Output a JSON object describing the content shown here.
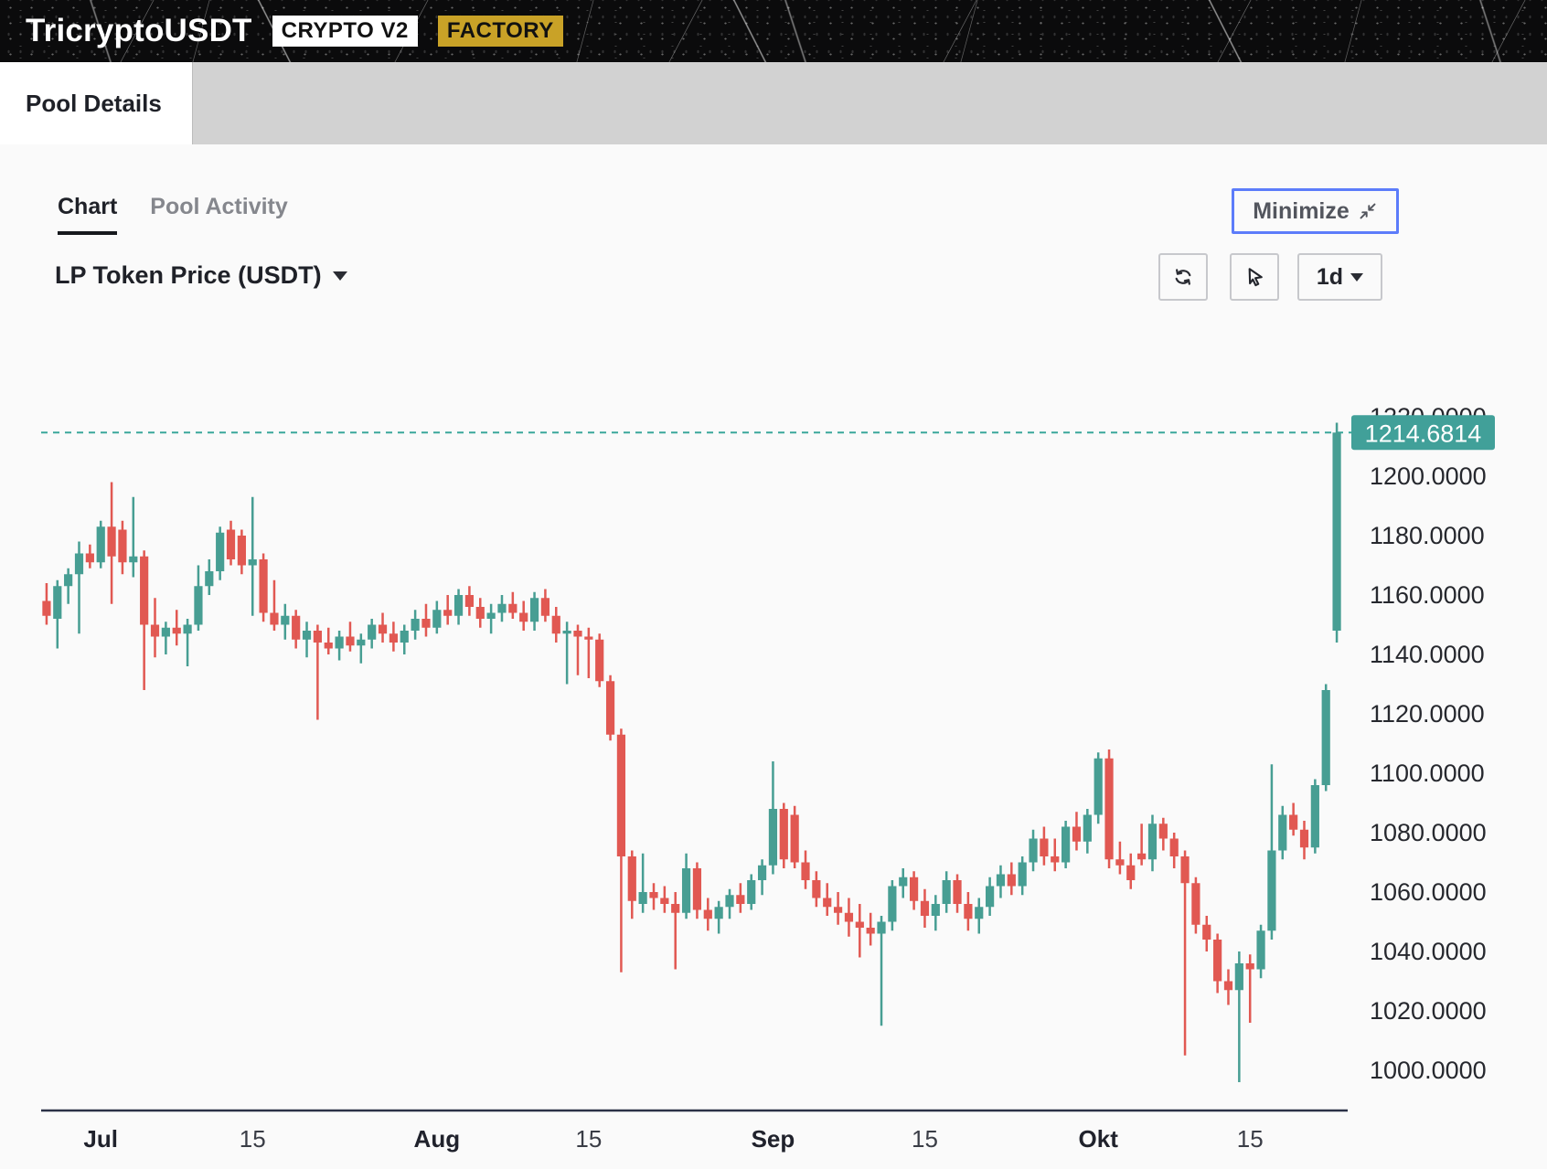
{
  "header": {
    "title": "TricryptoUSDT",
    "version_badge": "CRYPTO V2",
    "type_badge": "FACTORY"
  },
  "tabs": {
    "pool_details": "Pool Details"
  },
  "view_tabs": {
    "chart": "Chart",
    "pool_activity": "Pool Activity"
  },
  "controls": {
    "series_selector": "LP Token Price (USDT)",
    "minimize_label": "Minimize",
    "interval_label": "1d"
  },
  "colors": {
    "up": "#479e93",
    "down": "#e15852",
    "current_price_bg": "#41a099",
    "dashed_line": "#3aa79b",
    "accent_blue": "#5c7cfa",
    "factory_gold": "#c9a227",
    "axis_line": "#2b3147",
    "axis_text": "#26282e"
  },
  "chart_data": {
    "type": "candlestick",
    "title": "LP Token Price (USDT)",
    "interval": "1d",
    "legend_position": "none",
    "grid": false,
    "current_price": "1214.6814",
    "current_price_value": 1214.6814,
    "y_axis": {
      "min": 1000,
      "max": 1220,
      "step": 20,
      "decimals": 4,
      "tick_labels": [
        "1220.0000",
        "1200.0000",
        "1180.0000",
        "1160.0000",
        "1140.0000",
        "1120.0000",
        "1100.0000",
        "1080.0000",
        "1060.0000",
        "1040.0000",
        "1020.0000",
        "1000.0000"
      ]
    },
    "x_ticks": [
      {
        "label": "Jul",
        "index": 5,
        "bold": true
      },
      {
        "label": "15",
        "index": 19,
        "bold": false
      },
      {
        "label": "Aug",
        "index": 36,
        "bold": true
      },
      {
        "label": "15",
        "index": 50,
        "bold": false
      },
      {
        "label": "Sep",
        "index": 67,
        "bold": true
      },
      {
        "label": "15",
        "index": 81,
        "bold": false
      },
      {
        "label": "Okt",
        "index": 97,
        "bold": true
      },
      {
        "label": "15",
        "index": 111,
        "bold": false
      }
    ],
    "candles": [
      [
        "26 Jun",
        1158,
        1164,
        1150,
        1153
      ],
      [
        "27 Jun",
        1152,
        1165,
        1142,
        1163
      ],
      [
        "28 Jun",
        1163,
        1169,
        1157,
        1167
      ],
      [
        "29 Jun",
        1167,
        1178,
        1147,
        1174
      ],
      [
        "30 Jun",
        1174,
        1177,
        1169,
        1171
      ],
      [
        "1 Jul",
        1171,
        1185,
        1169,
        1183
      ],
      [
        "2 Jul",
        1183,
        1198,
        1157,
        1173
      ],
      [
        "3 Jul",
        1182,
        1185,
        1167,
        1171
      ],
      [
        "4 Jul",
        1171,
        1193,
        1166,
        1173
      ],
      [
        "5 Jul",
        1173,
        1175,
        1128,
        1150
      ],
      [
        "6 Jul",
        1150,
        1159,
        1139,
        1146
      ],
      [
        "7 Jul",
        1146,
        1151,
        1140,
        1149
      ],
      [
        "8 Jul",
        1149,
        1155,
        1143,
        1147
      ],
      [
        "9 Jul",
        1147,
        1152,
        1136,
        1150
      ],
      [
        "10 Jul",
        1150,
        1170,
        1148,
        1163
      ],
      [
        "11 Jul",
        1163,
        1172,
        1160,
        1168
      ],
      [
        "12 Jul",
        1168,
        1183,
        1165,
        1181
      ],
      [
        "13 Jul",
        1182,
        1185,
        1170,
        1172
      ],
      [
        "14 Jul",
        1180,
        1182,
        1167,
        1170
      ],
      [
        "15 Jul",
        1170,
        1193,
        1153,
        1172
      ],
      [
        "16 Jul",
        1172,
        1174,
        1151,
        1154
      ],
      [
        "17 Jul",
        1154,
        1165,
        1148,
        1150
      ],
      [
        "18 Jul",
        1150,
        1157,
        1145,
        1153
      ],
      [
        "19 Jul",
        1153,
        1155,
        1142,
        1145
      ],
      [
        "20 Jul",
        1145,
        1151,
        1139,
        1148
      ],
      [
        "21 Jul",
        1148,
        1150,
        1118,
        1144
      ],
      [
        "22 Jul",
        1144,
        1149,
        1140,
        1142
      ],
      [
        "23 Jul",
        1142,
        1148,
        1138,
        1146
      ],
      [
        "24 Jul",
        1146,
        1151,
        1141,
        1143
      ],
      [
        "25 Jul",
        1143,
        1147,
        1137,
        1145
      ],
      [
        "26 Jul",
        1145,
        1152,
        1142,
        1150
      ],
      [
        "27 Jul",
        1150,
        1154,
        1144,
        1147
      ],
      [
        "28 Jul",
        1147,
        1151,
        1141,
        1144
      ],
      [
        "29 Jul",
        1144,
        1150,
        1140,
        1148
      ],
      [
        "30 Jul",
        1148,
        1155,
        1145,
        1152
      ],
      [
        "31 Jul",
        1152,
        1157,
        1146,
        1149
      ],
      [
        "1 Aug",
        1149,
        1158,
        1147,
        1155
      ],
      [
        "2 Aug",
        1155,
        1160,
        1150,
        1153
      ],
      [
        "3 Aug",
        1153,
        1162,
        1150,
        1160
      ],
      [
        "4 Aug",
        1160,
        1163,
        1153,
        1156
      ],
      [
        "5 Aug",
        1156,
        1159,
        1149,
        1152
      ],
      [
        "6 Aug",
        1152,
        1157,
        1147,
        1154
      ],
      [
        "7 Aug",
        1154,
        1160,
        1151,
        1157
      ],
      [
        "8 Aug",
        1157,
        1161,
        1152,
        1154
      ],
      [
        "9 Aug",
        1154,
        1158,
        1148,
        1151
      ],
      [
        "10 Aug",
        1151,
        1161,
        1148,
        1159
      ],
      [
        "11 Aug",
        1159,
        1162,
        1151,
        1153
      ],
      [
        "12 Aug",
        1153,
        1156,
        1144,
        1147
      ],
      [
        "13 Aug",
        1147,
        1151,
        1130,
        1148
      ],
      [
        "14 Aug",
        1148,
        1150,
        1133,
        1146
      ],
      [
        "15 Aug",
        1146,
        1149,
        1132,
        1145
      ],
      [
        "16 Aug",
        1145,
        1147,
        1129,
        1131
      ],
      [
        "17 Aug",
        1131,
        1133,
        1111,
        1113
      ],
      [
        "18 Aug",
        1113,
        1115,
        1033,
        1072
      ],
      [
        "19 Aug",
        1072,
        1074,
        1051,
        1057
      ],
      [
        "20 Aug",
        1056,
        1073,
        1053,
        1060
      ],
      [
        "21 Aug",
        1060,
        1063,
        1054,
        1058
      ],
      [
        "22 Aug",
        1058,
        1062,
        1053,
        1056
      ],
      [
        "23 Aug",
        1056,
        1060,
        1034,
        1053
      ],
      [
        "24 Aug",
        1053,
        1073,
        1051,
        1068
      ],
      [
        "25 Aug",
        1068,
        1070,
        1051,
        1054
      ],
      [
        "26 Aug",
        1054,
        1058,
        1047,
        1051
      ],
      [
        "27 Aug",
        1051,
        1057,
        1046,
        1055
      ],
      [
        "28 Aug",
        1055,
        1061,
        1051,
        1059
      ],
      [
        "29 Aug",
        1059,
        1063,
        1053,
        1056
      ],
      [
        "30 Aug",
        1056,
        1066,
        1054,
        1064
      ],
      [
        "31 Aug",
        1064,
        1071,
        1059,
        1069
      ],
      [
        "1 Sep",
        1069,
        1104,
        1066,
        1088
      ],
      [
        "2 Sep",
        1088,
        1090,
        1068,
        1071
      ],
      [
        "3 Sep",
        1086,
        1089,
        1068,
        1070
      ],
      [
        "4 Sep",
        1070,
        1074,
        1061,
        1064
      ],
      [
        "5 Sep",
        1064,
        1067,
        1055,
        1058
      ],
      [
        "6 Sep",
        1058,
        1063,
        1052,
        1055
      ],
      [
        "7 Sep",
        1055,
        1060,
        1049,
        1053
      ],
      [
        "8 Sep",
        1053,
        1058,
        1045,
        1050
      ],
      [
        "9 Sep",
        1050,
        1056,
        1038,
        1048
      ],
      [
        "10 Sep",
        1048,
        1053,
        1042,
        1046
      ],
      [
        "11 Sep",
        1046,
        1052,
        1015,
        1050
      ],
      [
        "12 Sep",
        1050,
        1064,
        1047,
        1062
      ],
      [
        "13 Sep",
        1062,
        1068,
        1058,
        1065
      ],
      [
        "14 Sep",
        1065,
        1067,
        1054,
        1057
      ],
      [
        "15 Sep",
        1057,
        1061,
        1048,
        1052
      ],
      [
        "16 Sep",
        1052,
        1059,
        1047,
        1056
      ],
      [
        "17 Sep",
        1056,
        1067,
        1053,
        1064
      ],
      [
        "18 Sep",
        1064,
        1066,
        1053,
        1056
      ],
      [
        "19 Sep",
        1056,
        1060,
        1047,
        1051
      ],
      [
        "20 Sep",
        1051,
        1058,
        1046,
        1055
      ],
      [
        "21 Sep",
        1055,
        1065,
        1052,
        1062
      ],
      [
        "22 Sep",
        1062,
        1069,
        1058,
        1066
      ],
      [
        "23 Sep",
        1066,
        1070,
        1059,
        1062
      ],
      [
        "24 Sep",
        1062,
        1072,
        1059,
        1070
      ],
      [
        "25 Sep",
        1070,
        1081,
        1067,
        1078
      ],
      [
        "26 Sep",
        1078,
        1082,
        1069,
        1072
      ],
      [
        "27 Sep",
        1072,
        1078,
        1067,
        1070
      ],
      [
        "28 Sep",
        1070,
        1084,
        1068,
        1082
      ],
      [
        "29 Sep",
        1082,
        1087,
        1074,
        1077
      ],
      [
        "30 Sep",
        1077,
        1088,
        1073,
        1086
      ],
      [
        "1 Okt",
        1086,
        1107,
        1083,
        1105
      ],
      [
        "2 Okt",
        1105,
        1108,
        1068,
        1071
      ],
      [
        "3 Okt",
        1071,
        1077,
        1066,
        1069
      ],
      [
        "4 Okt",
        1069,
        1073,
        1061,
        1064
      ],
      [
        "5 Okt",
        1073,
        1083,
        1069,
        1071
      ],
      [
        "6 Okt",
        1071,
        1086,
        1067,
        1083
      ],
      [
        "7 Okt",
        1083,
        1085,
        1074,
        1078
      ],
      [
        "8 Okt",
        1078,
        1080,
        1068,
        1072
      ],
      [
        "9 Okt",
        1072,
        1074,
        1005,
        1063
      ],
      [
        "10 Okt",
        1063,
        1065,
        1046,
        1049
      ],
      [
        "11 Okt",
        1049,
        1052,
        1040,
        1044
      ],
      [
        "12 Okt",
        1044,
        1046,
        1026,
        1030
      ],
      [
        "13 Okt",
        1030,
        1034,
        1022,
        1027
      ],
      [
        "14 Okt",
        1027,
        1040,
        996,
        1036
      ],
      [
        "15 Okt",
        1036,
        1039,
        1016,
        1034
      ],
      [
        "16 Okt",
        1034,
        1049,
        1031,
        1047
      ],
      [
        "17 Okt",
        1047,
        1103,
        1044,
        1074
      ],
      [
        "18 Okt",
        1074,
        1089,
        1071,
        1086
      ],
      [
        "19 Okt",
        1086,
        1090,
        1079,
        1081
      ],
      [
        "20 Okt",
        1081,
        1084,
        1071,
        1075
      ],
      [
        "21 Okt",
        1075,
        1098,
        1073,
        1096
      ],
      [
        "22 Okt",
        1096,
        1130,
        1094,
        1128
      ],
      [
        "23 Okt",
        1148,
        1218,
        1144,
        1214.6814
      ]
    ]
  }
}
